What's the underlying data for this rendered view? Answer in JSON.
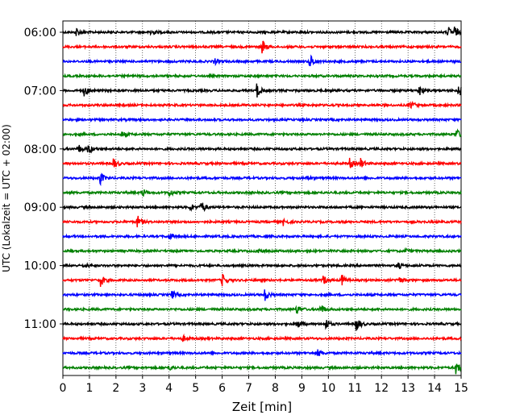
{
  "chart_data": {
    "type": "line",
    "title": "",
    "xlabel": "Zeit  [min]",
    "ylabel": "UTC (Lokalzeit = UTC + 02:00)",
    "xlim": [
      0,
      15
    ],
    "x_ticks": [
      "0",
      "1",
      "2",
      "3",
      "4",
      "5",
      "6",
      "7",
      "8",
      "9",
      "10",
      "11",
      "12",
      "13",
      "14",
      "15"
    ],
    "y_tick_labels": [
      "06:00",
      "07:00",
      "08:00",
      "09:00",
      "10:00",
      "11:00"
    ],
    "grid": "vertical dotted at each minute",
    "trace_interval_min": 15,
    "colors": [
      "#000000",
      "#ff0000",
      "#0000ff",
      "#008000"
    ],
    "traces": [
      {
        "start": "06:00",
        "events": [
          [
            0.5,
            0.6
          ],
          [
            3.3,
            0.5
          ],
          [
            14.5,
            0.7
          ],
          [
            14.75,
            0.6
          ]
        ]
      },
      {
        "start": "06:15",
        "events": [
          [
            7.5,
            0.9
          ]
        ]
      },
      {
        "start": "06:30",
        "events": [
          [
            5.7,
            0.4
          ],
          [
            9.3,
            1.0
          ]
        ]
      },
      {
        "start": "06:45",
        "events": []
      },
      {
        "start": "07:00",
        "events": [
          [
            0.8,
            0.7
          ],
          [
            7.3,
            0.9
          ],
          [
            13.4,
            0.8
          ],
          [
            14.9,
            0.8
          ]
        ]
      },
      {
        "start": "07:15",
        "events": [
          [
            13.1,
            0.5
          ]
        ]
      },
      {
        "start": "07:30",
        "events": []
      },
      {
        "start": "07:45",
        "events": [
          [
            2.2,
            0.4
          ],
          [
            14.8,
            0.8
          ]
        ]
      },
      {
        "start": "08:00",
        "events": [
          [
            0.6,
            0.5
          ],
          [
            0.95,
            0.7
          ]
        ]
      },
      {
        "start": "08:15",
        "events": [
          [
            1.9,
            0.7
          ],
          [
            10.8,
            0.6
          ],
          [
            11.2,
            0.7
          ]
        ]
      },
      {
        "start": "08:30",
        "events": [
          [
            1.4,
            0.8
          ],
          [
            9.2,
            0.3
          ]
        ]
      },
      {
        "start": "08:45",
        "events": [
          [
            3.0,
            0.5
          ],
          [
            4.0,
            0.5
          ]
        ]
      },
      {
        "start": "09:00",
        "events": [
          [
            4.8,
            0.5
          ],
          [
            5.2,
            0.9
          ]
        ]
      },
      {
        "start": "09:15",
        "events": [
          [
            2.8,
            0.8
          ],
          [
            8.3,
            0.4
          ]
        ]
      },
      {
        "start": "09:30",
        "events": [
          [
            4.0,
            0.4
          ]
        ]
      },
      {
        "start": "09:45",
        "events": [
          [
            7.3,
            0.3
          ],
          [
            12.9,
            0.3
          ]
        ]
      },
      {
        "start": "10:00",
        "events": [
          [
            0.8,
            0.3
          ],
          [
            12.6,
            0.5
          ]
        ]
      },
      {
        "start": "10:15",
        "events": [
          [
            1.4,
            0.9
          ],
          [
            6.0,
            0.8
          ],
          [
            9.8,
            0.6
          ],
          [
            10.5,
            0.7
          ],
          [
            12.6,
            0.5
          ]
        ]
      },
      {
        "start": "10:30",
        "events": [
          [
            4.1,
            0.5
          ],
          [
            7.6,
            0.8
          ]
        ]
      },
      {
        "start": "10:45",
        "events": [
          [
            8.8,
            0.6
          ],
          [
            9.7,
            0.7
          ]
        ]
      },
      {
        "start": "11:00",
        "events": [
          [
            8.8,
            0.7
          ],
          [
            9.9,
            0.7
          ],
          [
            11.05,
            1.0
          ]
        ]
      },
      {
        "start": "11:15",
        "events": [
          [
            4.5,
            0.4
          ]
        ]
      },
      {
        "start": "11:30",
        "events": [
          [
            9.6,
            0.5
          ]
        ]
      },
      {
        "start": "11:45",
        "events": [
          [
            4.0,
            0.3
          ],
          [
            14.8,
            0.9
          ]
        ]
      }
    ]
  }
}
